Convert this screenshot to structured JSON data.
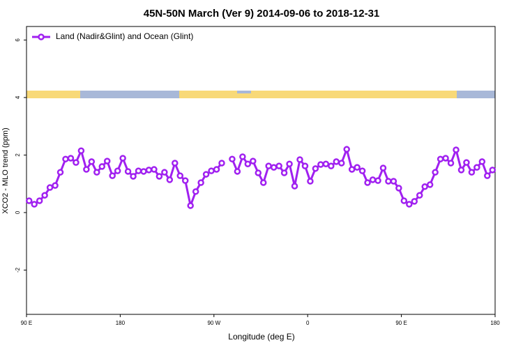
{
  "chart_data": {
    "type": "line",
    "title": "45N-50N March (Ver 9)   2014-09-06 to 2018-12-31",
    "xlabel": "Longitude (deg E)",
    "ylabel": "XCO2 - MLO trend (ppm)",
    "xlim": [
      90,
      540
    ],
    "ylim": [
      -3.54,
      6.47
    ],
    "xticks": [
      {
        "value": 90,
        "label": "90 E"
      },
      180,
      {
        "value": 270,
        "label": "90 W"
      },
      {
        "value": 360,
        "label": "0"
      },
      {
        "value": 450,
        "label": "90 E"
      },
      {
        "value": 540,
        "label": "180"
      }
    ],
    "yticks": [
      -2,
      0,
      2,
      4,
      6
    ],
    "grid": false,
    "legend": "top-left",
    "x": [
      92.5,
      97.5,
      102.5,
      107.5,
      112.5,
      117.5,
      122.5,
      127.5,
      132.5,
      137.5,
      142.5,
      147.5,
      152.5,
      157.5,
      162.5,
      167.5,
      172.5,
      177.5,
      182.5,
      187.5,
      192.5,
      197.5,
      202.5,
      207.5,
      212.5,
      217.5,
      222.5,
      227.5,
      232.5,
      237.5,
      242.5,
      247.5,
      252.5,
      257.5,
      262.5,
      267.5,
      272.5,
      277.5,
      282.5,
      287.5,
      292.5,
      297.5,
      302.5,
      307.5,
      312.5,
      317.5,
      322.5,
      327.5,
      332.5,
      337.5,
      342.5,
      347.5,
      352.5,
      357.5,
      362.5,
      367.5,
      372.5,
      377.5,
      382.5,
      387.5,
      392.5,
      397.5,
      402.5,
      407.5,
      412.5,
      417.5,
      422.5,
      427.5,
      432.5,
      437.5,
      442.5,
      447.5,
      452.5,
      457.5,
      462.5,
      467.5,
      472.5,
      477.5,
      482.5,
      487.5,
      492.5,
      497.5,
      502.5,
      507.5,
      512.5,
      517.5,
      522.5,
      527.5,
      532.5,
      537.5
    ],
    "series": [
      {
        "name": "Land (Nadir&Glint) and Ocean (Glint)",
        "color": "#a020f0",
        "values": [
          0.41,
          0.29,
          0.41,
          0.6,
          0.87,
          0.94,
          1.4,
          1.86,
          1.89,
          1.74,
          2.15,
          1.5,
          1.77,
          1.4,
          1.6,
          1.79,
          1.28,
          1.45,
          1.89,
          1.43,
          1.26,
          1.45,
          1.43,
          1.48,
          1.5,
          1.26,
          1.4,
          1.14,
          1.72,
          1.28,
          1.11,
          0.24,
          0.73,
          1.04,
          1.33,
          1.45,
          1.5,
          1.72,
          null,
          1.86,
          1.43,
          1.94,
          1.69,
          1.79,
          1.38,
          1.04,
          1.62,
          1.57,
          1.62,
          1.38,
          1.69,
          0.92,
          1.84,
          1.62,
          1.09,
          1.53,
          1.67,
          1.69,
          1.62,
          1.77,
          1.72,
          2.2,
          1.5,
          1.57,
          1.45,
          1.04,
          1.14,
          1.11,
          1.55,
          1.09,
          1.09,
          0.85,
          0.41,
          0.29,
          0.39,
          0.6,
          0.9,
          0.97,
          1.4,
          1.86,
          1.89,
          1.72,
          2.18,
          1.48,
          1.74,
          1.4,
          1.57,
          1.77,
          1.28,
          1.48
        ]
      }
    ]
  }
}
